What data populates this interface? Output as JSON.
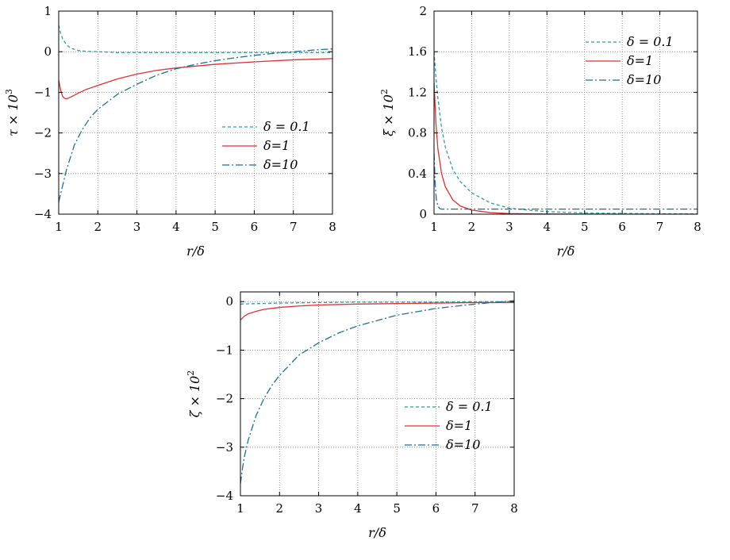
{
  "colors": {
    "delta_0_1": "#2aa198",
    "delta_1": "#e03030",
    "delta_10": "#1a6f9e"
  },
  "chart_data": [
    {
      "type": "line",
      "xlabel": "r/δ",
      "ylabel": "τ × 10",
      "ylabel_sup": "3",
      "xlim": [
        1,
        8
      ],
      "ylim": [
        -4,
        1
      ],
      "xticks": [
        1,
        2,
        3,
        4,
        5,
        6,
        7,
        8
      ],
      "yticks": [
        -4,
        -3,
        -2,
        -1,
        0,
        1
      ],
      "ytick_labels": [
        "−4",
        "−3",
        "−2",
        "−1",
        "0",
        "1"
      ],
      "grid": true,
      "legend_position": "lower-right",
      "series": [
        {
          "name": "δ = 0.1",
          "style": "dashed",
          "color_key": "delta_0_1",
          "x": [
            1.0,
            1.05,
            1.1,
            1.2,
            1.3,
            1.5,
            1.7,
            2.0,
            2.5,
            3.0,
            4.0,
            5.0,
            6.0,
            7.0,
            8.0
          ],
          "y": [
            0.65,
            0.45,
            0.32,
            0.17,
            0.09,
            0.03,
            0.01,
            0.0,
            -0.02,
            -0.02,
            -0.02,
            -0.02,
            -0.02,
            -0.02,
            -0.02
          ]
        },
        {
          "name": "δ=1",
          "style": "solid",
          "color_key": "delta_1",
          "x": [
            1.0,
            1.05,
            1.1,
            1.15,
            1.2,
            1.3,
            1.5,
            1.7,
            2.0,
            2.5,
            3.0,
            3.5,
            4.0,
            5.0,
            6.0,
            7.0,
            8.0
          ],
          "y": [
            -0.7,
            -0.95,
            -1.1,
            -1.15,
            -1.16,
            -1.12,
            -1.02,
            -0.93,
            -0.83,
            -0.67,
            -0.55,
            -0.46,
            -0.4,
            -0.31,
            -0.25,
            -0.2,
            -0.17
          ]
        },
        {
          "name": "δ=10",
          "style": "dashdot",
          "color_key": "delta_10",
          "x": [
            1.0,
            1.1,
            1.2,
            1.4,
            1.6,
            1.8,
            2.0,
            2.5,
            3.0,
            3.5,
            4.0,
            4.5,
            5.0,
            5.5,
            6.0,
            6.5,
            7.0,
            7.5,
            8.0
          ],
          "y": [
            -3.7,
            -3.3,
            -2.9,
            -2.3,
            -1.92,
            -1.63,
            -1.42,
            -1.05,
            -0.8,
            -0.58,
            -0.42,
            -0.31,
            -0.22,
            -0.15,
            -0.09,
            -0.04,
            0.0,
            0.04,
            0.07
          ]
        }
      ]
    },
    {
      "type": "line",
      "xlabel": "r/δ",
      "ylabel": "ξ × 10",
      "ylabel_sup": "2",
      "xlim": [
        1,
        8
      ],
      "ylim": [
        0,
        2
      ],
      "xticks": [
        1,
        2,
        3,
        4,
        5,
        6,
        7,
        8
      ],
      "yticks": [
        0,
        0.4,
        0.8,
        1.2,
        1.6,
        2
      ],
      "ytick_labels": [
        "0",
        "0.4",
        "0.8",
        "1.2",
        "1.6",
        "2"
      ],
      "grid": true,
      "legend_position": "top-right",
      "series": [
        {
          "name": "δ = 0.1",
          "style": "dashed",
          "color_key": "delta_0_1",
          "x": [
            1.0,
            1.05,
            1.1,
            1.2,
            1.3,
            1.5,
            1.7,
            2.0,
            2.5,
            3.0,
            3.5,
            4.0,
            5.0,
            6.0,
            7.0,
            8.0
          ],
          "y": [
            1.6,
            1.35,
            1.15,
            0.85,
            0.66,
            0.44,
            0.32,
            0.21,
            0.11,
            0.06,
            0.04,
            0.025,
            0.012,
            0.007,
            0.004,
            0.003
          ]
        },
        {
          "name": "δ=1",
          "style": "solid",
          "color_key": "delta_1",
          "x": [
            1.0,
            1.05,
            1.1,
            1.2,
            1.3,
            1.5,
            1.7,
            2.0,
            2.5,
            3.0,
            4.0,
            5.0,
            6.0,
            7.0,
            8.0
          ],
          "y": [
            1.3,
            0.9,
            0.65,
            0.4,
            0.27,
            0.14,
            0.08,
            0.04,
            0.015,
            0.006,
            0.002,
            0.001,
            0.0,
            0.0,
            0.0
          ]
        },
        {
          "name": "δ=10",
          "style": "dashdot",
          "color_key": "delta_10",
          "x": [
            1.0,
            1.03,
            1.06,
            1.1,
            1.15,
            1.2,
            1.3,
            1.5,
            2.0,
            3.0,
            4.0,
            5.0,
            6.0,
            7.0,
            8.0
          ],
          "y": [
            0.6,
            0.3,
            0.15,
            0.08,
            0.055,
            0.05,
            0.05,
            0.05,
            0.05,
            0.05,
            0.05,
            0.05,
            0.05,
            0.05,
            0.05
          ]
        }
      ]
    },
    {
      "type": "line",
      "xlabel": "r/δ",
      "ylabel": "ζ × 10",
      "ylabel_sup": "2",
      "xlim": [
        1,
        8
      ],
      "ylim": [
        -4,
        0.2
      ],
      "xticks": [
        1,
        2,
        3,
        4,
        5,
        6,
        7,
        8
      ],
      "yticks": [
        -4,
        -3,
        -2,
        -1,
        0
      ],
      "ytick_labels": [
        "−4",
        "−3",
        "−2",
        "−1",
        "0"
      ],
      "grid": true,
      "legend_position": "lower-right",
      "series": [
        {
          "name": "δ = 0.1",
          "style": "dashed",
          "color_key": "delta_0_1",
          "x": [
            1.0,
            1.5,
            2.0,
            3.0,
            4.0,
            5.0,
            6.0,
            7.0,
            8.0
          ],
          "y": [
            -0.05,
            -0.04,
            -0.03,
            -0.02,
            -0.01,
            -0.01,
            -0.01,
            -0.0,
            0.0
          ]
        },
        {
          "name": "δ=1",
          "style": "solid",
          "color_key": "delta_1",
          "x": [
            1.0,
            1.1,
            1.2,
            1.4,
            1.6,
            2.0,
            2.5,
            3.0,
            4.0,
            5.0,
            6.0,
            7.0,
            8.0
          ],
          "y": [
            -0.38,
            -0.3,
            -0.25,
            -0.2,
            -0.16,
            -0.12,
            -0.09,
            -0.07,
            -0.05,
            -0.04,
            -0.03,
            -0.02,
            -0.02
          ]
        },
        {
          "name": "δ=10",
          "style": "dashdot",
          "color_key": "delta_10",
          "x": [
            1.0,
            1.05,
            1.1,
            1.2,
            1.4,
            1.6,
            1.8,
            2.0,
            2.5,
            3.0,
            3.5,
            4.0,
            5.0,
            6.0,
            7.0,
            8.0
          ],
          "y": [
            -3.75,
            -3.45,
            -3.2,
            -2.85,
            -2.35,
            -2.0,
            -1.73,
            -1.52,
            -1.1,
            -0.85,
            -0.65,
            -0.5,
            -0.28,
            -0.14,
            -0.05,
            0.02
          ]
        }
      ]
    }
  ]
}
